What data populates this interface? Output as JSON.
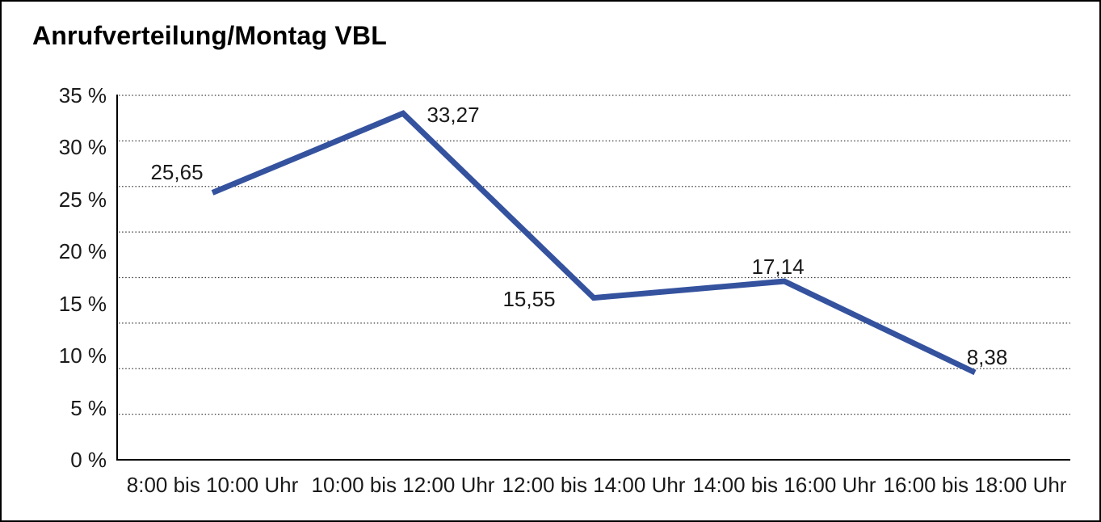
{
  "window": {
    "background_color": "#ffffff",
    "border_color": "#000000"
  },
  "chart_data": {
    "type": "line",
    "title": "Anrufverteilung/Montag VBL",
    "categories": [
      "8:00 bis 10:00 Uhr",
      "10:00 bis 12:00 Uhr",
      "12:00 bis 14:00 Uhr",
      "14:00 bis 16:00 Uhr",
      "16:00 bis 18:00 Uhr"
    ],
    "values": [
      25.65,
      33.27,
      15.55,
      17.14,
      8.38
    ],
    "value_labels": [
      "25,65",
      "33,27",
      "15,55",
      "17,14",
      "8,38"
    ],
    "unit": "%",
    "xlabel": "",
    "ylabel": "",
    "ylim": [
      0,
      35
    ],
    "y_ticks": [
      0,
      5,
      10,
      15,
      20,
      25,
      30,
      35
    ],
    "y_tick_labels": [
      "0 %",
      "5 %",
      "10 %",
      "15 %",
      "20 %",
      "25 %",
      "30 %",
      "35 %"
    ],
    "grid": {
      "horizontal": "dotted",
      "divisions": 8,
      "vertical": "none"
    },
    "legend": "none",
    "line_color": "#34529E",
    "axis_color": "#000000",
    "gridline_color": "#3a3a3a",
    "text_color": "#1a1a1a"
  }
}
